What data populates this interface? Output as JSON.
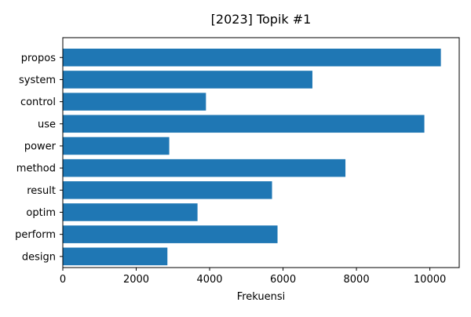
{
  "chart_data": {
    "type": "bar",
    "orientation": "horizontal",
    "title": "[2023] Topik #1",
    "xlabel": "Frekuensi",
    "ylabel": "",
    "categories": [
      "propos",
      "system",
      "control",
      "use",
      "power",
      "method",
      "result",
      "optim",
      "perform",
      "design"
    ],
    "values": [
      10300,
      6800,
      3900,
      9850,
      2900,
      7700,
      5700,
      3670,
      5850,
      2850
    ],
    "xlim": [
      0,
      10800
    ],
    "x_ticks": [
      0,
      2000,
      4000,
      6000,
      8000,
      10000
    ],
    "grid": false,
    "legend": "none",
    "bar_color": "#1f77b4"
  }
}
